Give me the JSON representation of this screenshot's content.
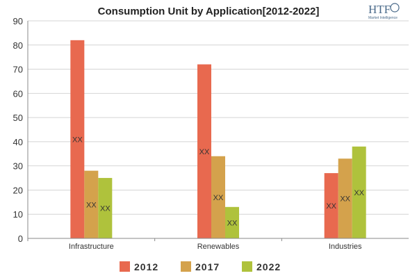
{
  "logo": {
    "name": "HTF",
    "subtitle": "Market Intelligence"
  },
  "chart_data": {
    "type": "bar",
    "title": "Consumption Unit by  Application[2012-2022]",
    "xlabel": "",
    "ylabel": "",
    "ylim": [
      0,
      90
    ],
    "yticks": [
      0,
      10,
      20,
      30,
      40,
      50,
      60,
      70,
      80,
      90
    ],
    "grid": true,
    "legend_position": "bottom",
    "categories": [
      "Infrastructure",
      "Renewables",
      "Industries"
    ],
    "series": [
      {
        "name": "2012",
        "color": "#e8694f",
        "values": [
          82,
          72,
          27
        ],
        "labels": [
          "XX",
          "XX",
          "XX"
        ]
      },
      {
        "name": "2017",
        "color": "#d4a24c",
        "values": [
          28,
          34,
          33
        ],
        "labels": [
          "XX",
          "XX",
          "XX"
        ]
      },
      {
        "name": "2022",
        "color": "#afc23c",
        "values": [
          25,
          13,
          38
        ],
        "labels": [
          "XX",
          "XX",
          "XX"
        ]
      }
    ]
  }
}
